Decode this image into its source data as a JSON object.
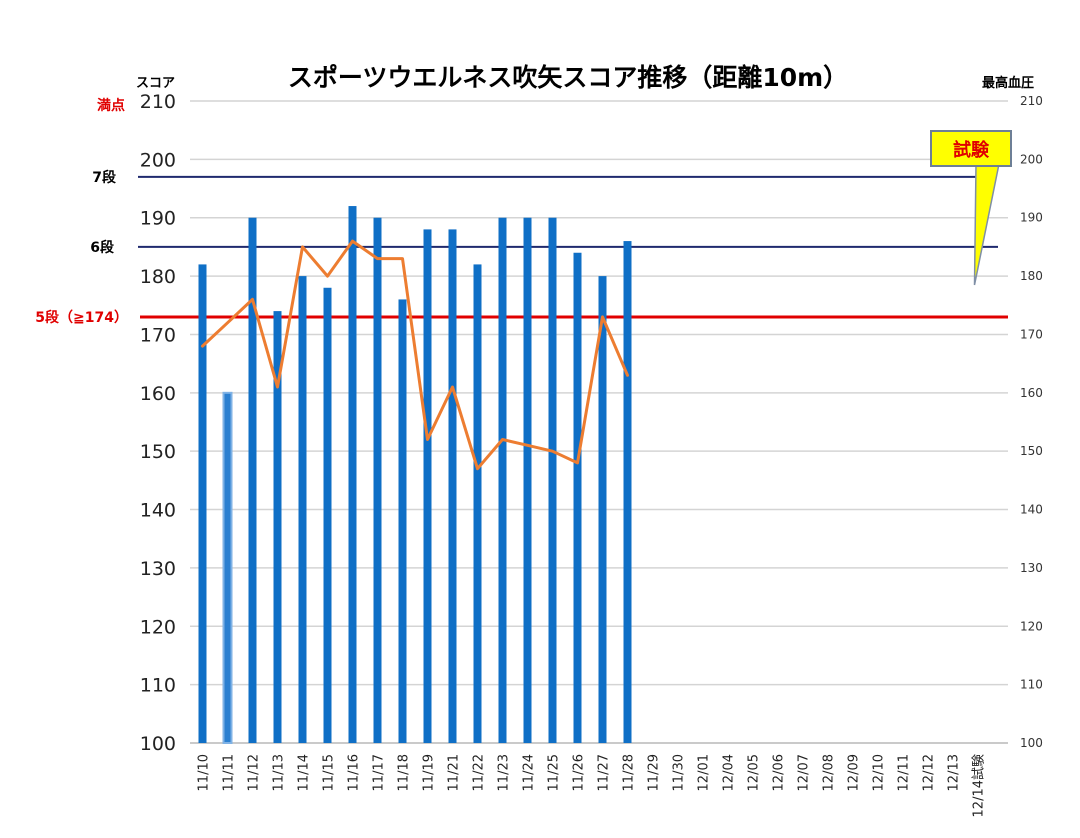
{
  "chart_data": {
    "type": "bar",
    "title": "スポーツウエルネス吹矢スコア推移（距離10m）",
    "ylabel": "スコア",
    "y2label": "最高血圧",
    "ylim": [
      100,
      210
    ],
    "y2lim": [
      100,
      210
    ],
    "yticks": [
      "100",
      "110",
      "120",
      "130",
      "140",
      "150",
      "160",
      "170",
      "180",
      "190",
      "200",
      "210"
    ],
    "grid": true,
    "categories": [
      "11/10",
      "11/11",
      "11/12",
      "11/13",
      "11/14",
      "11/15",
      "11/16",
      "11/17",
      "11/18",
      "11/19",
      "11/21",
      "11/22",
      "11/23",
      "11/24",
      "11/25",
      "11/26",
      "11/27",
      "11/28",
      "11/29",
      "11/30",
      "12/01",
      "12/04",
      "12/05",
      "12/06",
      "12/07",
      "12/08",
      "12/09",
      "12/10",
      "12/11",
      "12/12",
      "12/13",
      "12/14試験"
    ],
    "series": [
      {
        "type": "bar",
        "color": "#0f6fc6",
        "values": [
          182,
          160,
          190,
          174,
          180,
          178,
          192,
          190,
          176,
          188,
          188,
          182,
          190,
          190,
          190,
          184,
          180,
          186,
          null,
          null,
          null,
          null,
          null,
          null,
          null,
          null,
          null,
          null,
          null,
          null,
          null,
          null
        ]
      },
      {
        "type": "line",
        "axis": "right",
        "color": "#ed7d31",
        "values": [
          168,
          172,
          176,
          161,
          185,
          180,
          186,
          183,
          183,
          152,
          161,
          147,
          152,
          151,
          150,
          148,
          173,
          163,
          null,
          null,
          null,
          null,
          null,
          null,
          null,
          null,
          null,
          null,
          null,
          null,
          null,
          null
        ]
      }
    ],
    "reference_lines": [
      {
        "label": "満点",
        "value": 210,
        "color": "#e00000"
      },
      {
        "label": "7段",
        "value": 197,
        "color": "#1f2a6e"
      },
      {
        "label": "6段",
        "value": 185,
        "color": "#1f2a6e"
      },
      {
        "label": "5段（≧174）",
        "value": 173,
        "color": "#e00000"
      }
    ],
    "callout": {
      "text": "試験",
      "target": "12/14試験",
      "fill": "#ffff00"
    }
  }
}
